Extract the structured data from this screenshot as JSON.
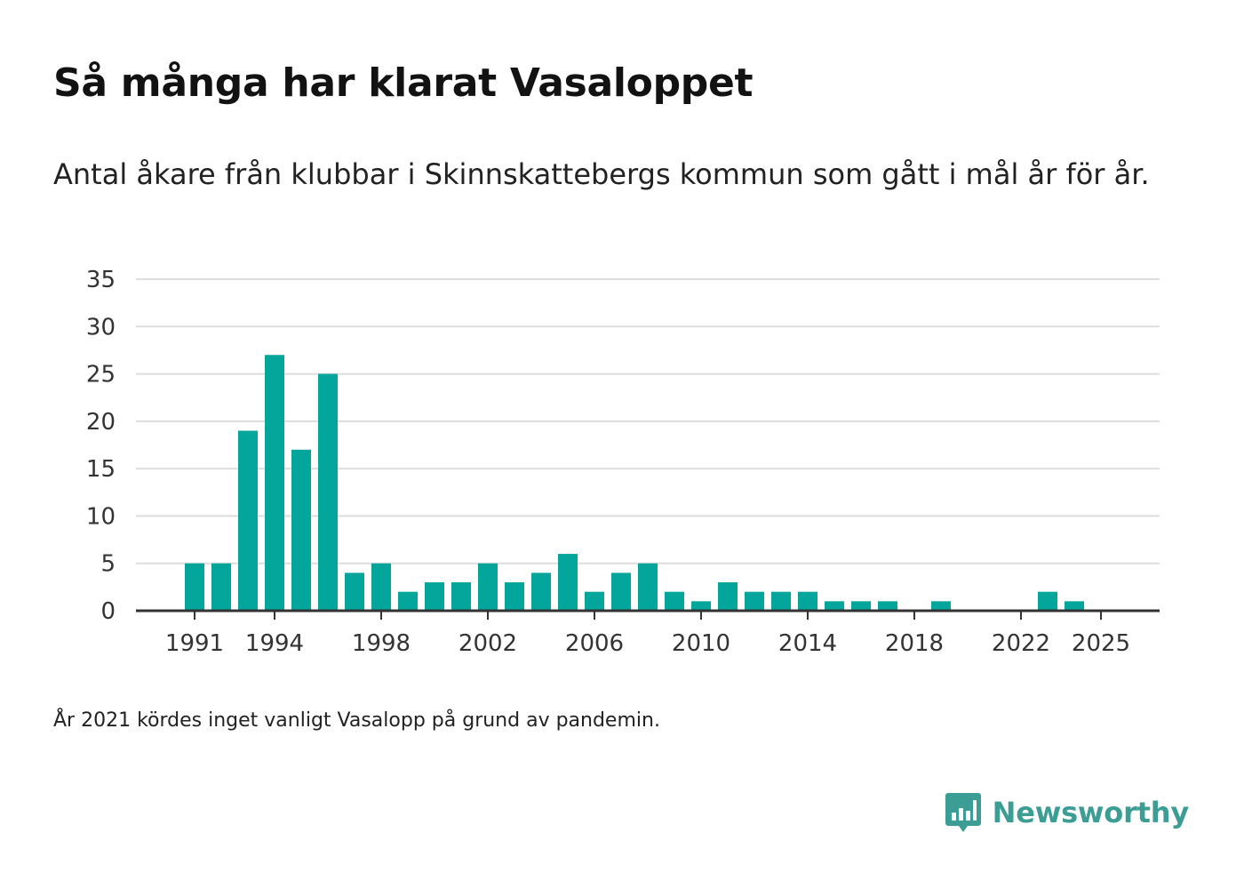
{
  "header": {
    "title": "Så många har klarat Vasaloppet",
    "subtitle": "Antal åkare från klubbar i Skinnskattebergs kommun som gått i mål år för år."
  },
  "footer": {
    "note": "År 2021 kördes inget vanligt Vasalopp på grund av pandemin.",
    "brand": "Newsworthy"
  },
  "colors": {
    "bar": "#04a59a",
    "grid": "#dddddd",
    "axis": "#333333",
    "brand": "#3c9d95"
  },
  "chart_data": {
    "type": "bar",
    "title": "Så många har klarat Vasaloppet",
    "xlabel": "",
    "ylabel": "",
    "xlim": [
      1990,
      2027
    ],
    "ylim": [
      0,
      35
    ],
    "yticks": [
      0,
      5,
      10,
      15,
      20,
      25,
      30,
      35
    ],
    "xticks": [
      1991,
      1994,
      1998,
      2002,
      2006,
      2010,
      2014,
      2018,
      2022,
      2025
    ],
    "grid": true,
    "x": [
      1991,
      1992,
      1993,
      1994,
      1995,
      1996,
      1997,
      1998,
      1999,
      2000,
      2001,
      2002,
      2003,
      2004,
      2005,
      2006,
      2007,
      2008,
      2009,
      2010,
      2011,
      2012,
      2013,
      2014,
      2015,
      2016,
      2017,
      2018,
      2019,
      2020,
      2021,
      2022,
      2023,
      2024,
      2025
    ],
    "values": [
      5,
      5,
      19,
      27,
      17,
      25,
      4,
      5,
      2,
      3,
      3,
      5,
      3,
      4,
      6,
      2,
      4,
      5,
      2,
      1,
      3,
      2,
      2,
      2,
      1,
      1,
      1,
      0,
      1,
      0,
      0,
      0,
      2,
      1,
      0
    ]
  }
}
